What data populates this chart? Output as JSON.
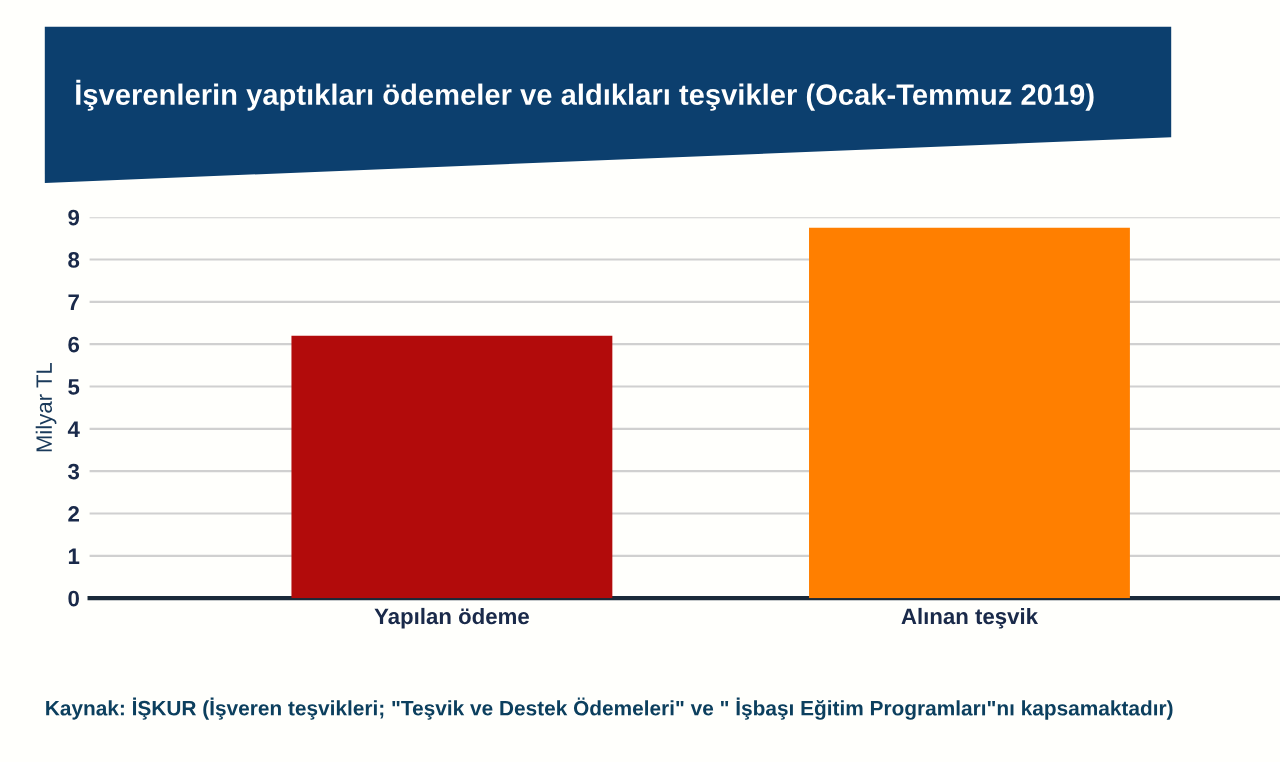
{
  "chart_data": {
    "type": "bar",
    "title": "İşverenlerin yaptıkları ödemeler ve aldıkları teşvikler (Ocak-Temmuz 2019)",
    "ylabel": "Milyar TL",
    "categories": [
      "Yapılan ödeme",
      "Alınan teşvik"
    ],
    "values": [
      6.2,
      8.75
    ],
    "colors": [
      "#b20b0b",
      "#ff7f00"
    ],
    "ylim": [
      0,
      9
    ],
    "yticks": [
      0,
      1,
      2,
      3,
      4,
      5,
      6,
      7,
      8,
      9
    ],
    "grid": "y",
    "annotations": [
      "Kaynak: İŞKUR (İşveren teşvikleri; \"Teşvik ve Destek Ödemeleri\" ve \" İşbaşı Eğitim Programları\"nı kapsamaktadır)"
    ]
  }
}
